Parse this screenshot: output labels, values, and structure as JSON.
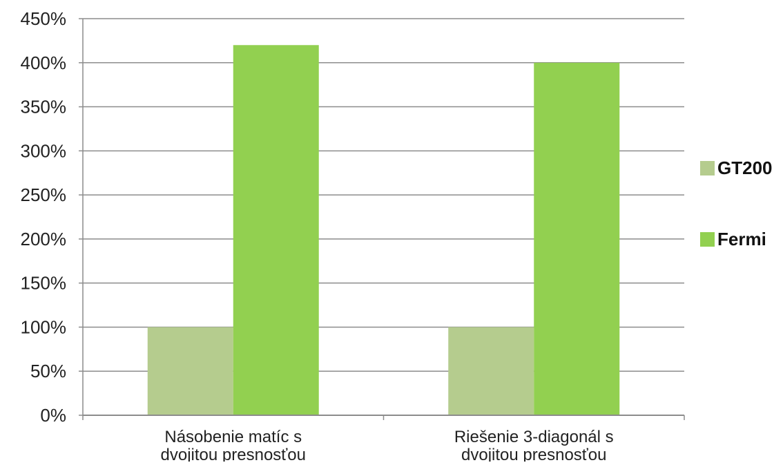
{
  "chart_data": {
    "type": "bar",
    "categories": [
      "Násobenie matíc s dvojitou presnosťou",
      "Riešenie 3-diagonál s dvojitou presnosťou"
    ],
    "category_lines": [
      [
        "Násobenie matíc s",
        "dvojitou presnosťou"
      ],
      [
        "Riešenie 3-diagonál s",
        "dvojitou presnosťou"
      ]
    ],
    "series": [
      {
        "name": "GT200",
        "values": [
          100,
          100
        ],
        "color": "#b5cc8e"
      },
      {
        "name": "Fermi",
        "values": [
          420,
          400
        ],
        "color": "#92d050"
      }
    ],
    "ylim": [
      0,
      450
    ],
    "yticks": [
      0,
      50,
      100,
      150,
      200,
      250,
      300,
      350,
      400,
      450
    ],
    "ytick_labels": [
      "0%",
      "50%",
      "100%",
      "150%",
      "200%",
      "250%",
      "300%",
      "350%",
      "400%",
      "450%"
    ],
    "grid": true,
    "legend_position": "right",
    "title": "",
    "xlabel": "",
    "ylabel": ""
  }
}
